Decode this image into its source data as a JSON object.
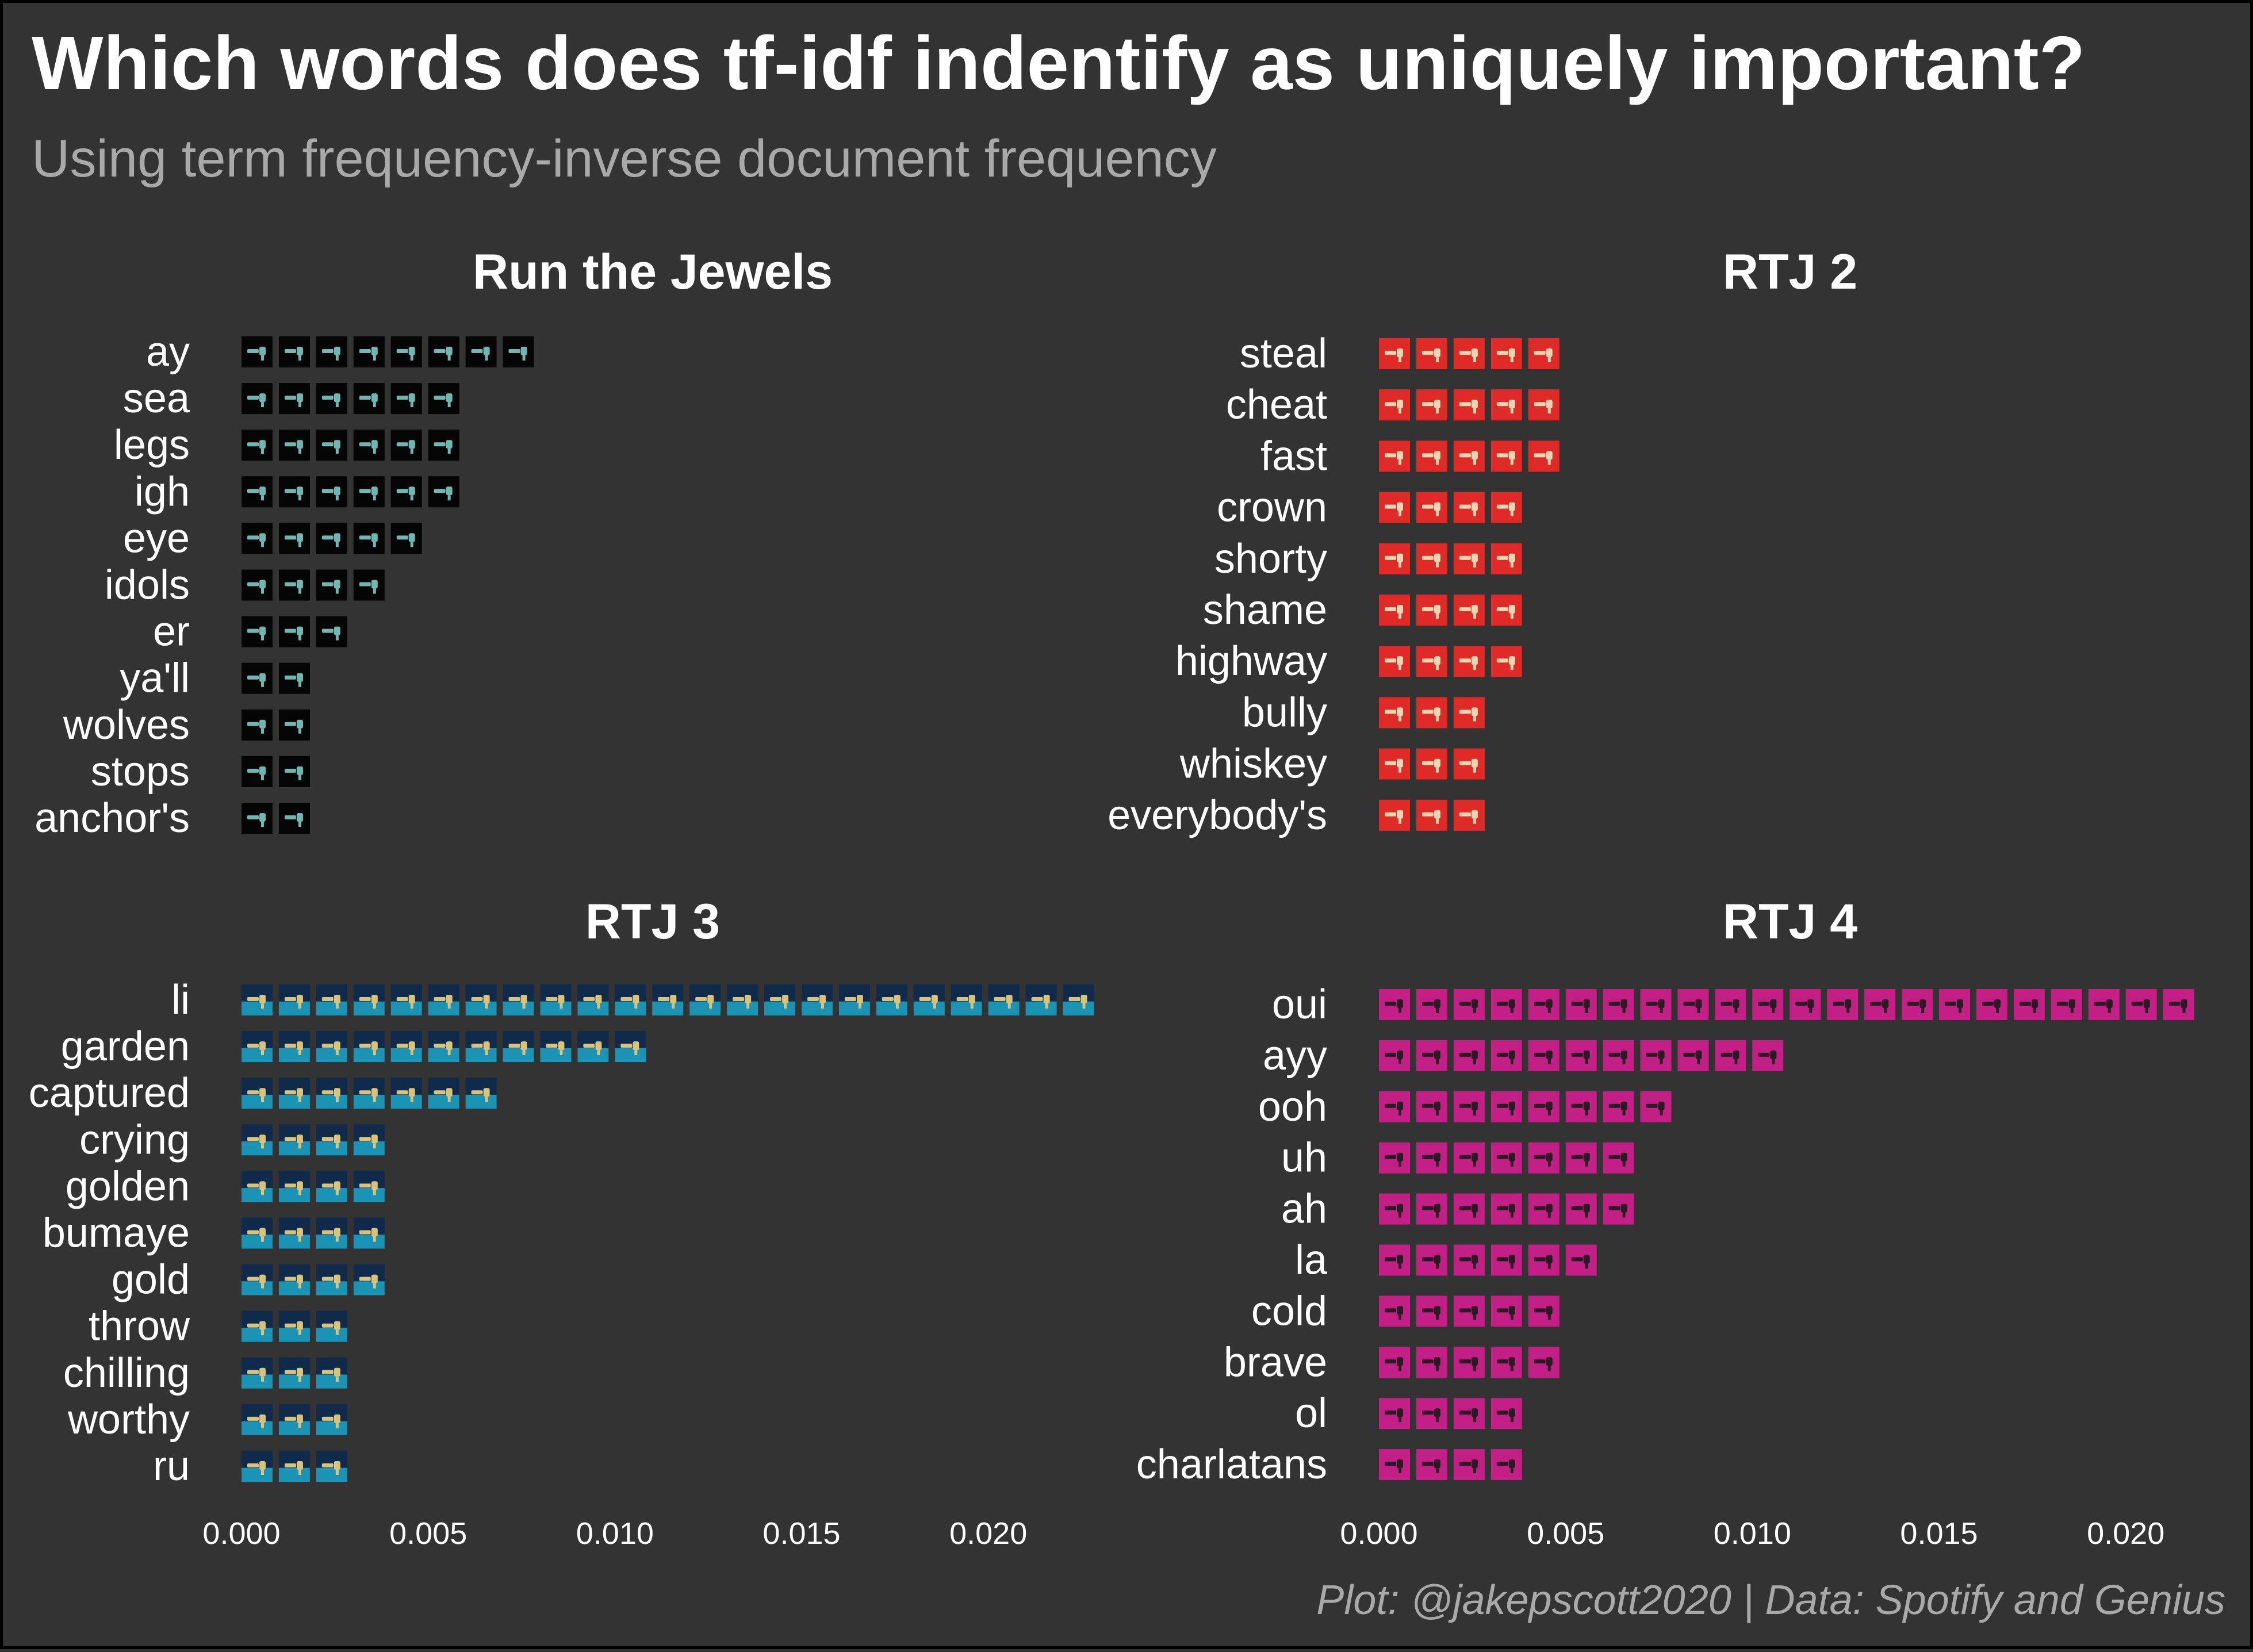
{
  "title": "Which words does tf-idf indentify as uniquely important?",
  "subtitle": "Using term frequency-inverse document frequency",
  "caption": "Plot: @jakepscott2020 | Data: Spotify and Genius",
  "chart_data": [
    {
      "type": "bar",
      "orientation": "horizontal",
      "bar_style": "stacked album-cover icons",
      "title": "Run the Jewels",
      "xlim": [
        0,
        0.0225
      ],
      "x_ticks": [
        0.0,
        0.005,
        0.01,
        0.015,
        0.02
      ],
      "x_tick_labels": [
        "0.000",
        "0.005",
        "0.010",
        "0.015",
        "0.020"
      ],
      "x_tick_labels_shown": false,
      "tile_color": "#050505",
      "icon_color": "#6fb7b0",
      "categories": [
        "ay",
        "sea",
        "legs",
        "igh",
        "eye",
        "idols",
        "er",
        "ya'll",
        "wolves",
        "stops",
        "anchor's"
      ],
      "values": [
        0.0078,
        0.0058,
        0.0058,
        0.0058,
        0.0048,
        0.0038,
        0.0028,
        0.0018,
        0.0018,
        0.0018,
        0.0018
      ]
    },
    {
      "type": "bar",
      "orientation": "horizontal",
      "bar_style": "stacked album-cover icons",
      "title": "RTJ 2",
      "xlim": [
        0,
        0.0225
      ],
      "x_ticks": [
        0.0,
        0.005,
        0.01,
        0.015,
        0.02
      ],
      "x_tick_labels": [
        "0.000",
        "0.005",
        "0.010",
        "0.015",
        "0.020"
      ],
      "x_tick_labels_shown": false,
      "tile_color": "#e02a27",
      "icon_color": "#e8d7b0",
      "categories": [
        "steal",
        "cheat",
        "fast",
        "crown",
        "shorty",
        "shame",
        "highway",
        "bully",
        "whiskey",
        "everybody's"
      ],
      "values": [
        0.0048,
        0.0048,
        0.0048,
        0.0038,
        0.0038,
        0.0038,
        0.0038,
        0.0028,
        0.0028,
        0.0028
      ]
    },
    {
      "type": "bar",
      "orientation": "horizontal",
      "bar_style": "stacked album-cover icons",
      "title": "RTJ 3",
      "xlim": [
        0,
        0.0225
      ],
      "x_ticks": [
        0.0,
        0.005,
        0.01,
        0.015,
        0.02
      ],
      "x_tick_labels": [
        "0.000",
        "0.005",
        "0.010",
        "0.015",
        "0.020"
      ],
      "x_tick_labels_shown": true,
      "tile_color": "#0f2a4a",
      "tile_accent": "#1ca6c8",
      "icon_color": "#d9c27a",
      "categories": [
        "li",
        "garden",
        "captured",
        "crying",
        "golden",
        "bumaye",
        "gold",
        "throw",
        "chilling",
        "worthy",
        "ru"
      ],
      "values": [
        0.0228,
        0.0108,
        0.0068,
        0.0038,
        0.0038,
        0.0038,
        0.0038,
        0.0028,
        0.0028,
        0.0028,
        0.0028
      ]
    },
    {
      "type": "bar",
      "orientation": "horizontal",
      "bar_style": "stacked album-cover icons",
      "title": "RTJ 4",
      "xlim": [
        0,
        0.0225
      ],
      "x_ticks": [
        0.0,
        0.005,
        0.01,
        0.015,
        0.02
      ],
      "x_tick_labels": [
        "0.000",
        "0.005",
        "0.010",
        "0.015",
        "0.020"
      ],
      "x_tick_labels_shown": true,
      "tile_color": "#c41f86",
      "icon_color": "#2a1a22",
      "categories": [
        "oui",
        "ayy",
        "ooh",
        "uh",
        "ah",
        "la",
        "cold",
        "brave",
        "ol",
        "charlatans"
      ],
      "values": [
        0.0218,
        0.0108,
        0.0078,
        0.0068,
        0.0068,
        0.0058,
        0.0048,
        0.0048,
        0.0038,
        0.0038
      ]
    }
  ]
}
